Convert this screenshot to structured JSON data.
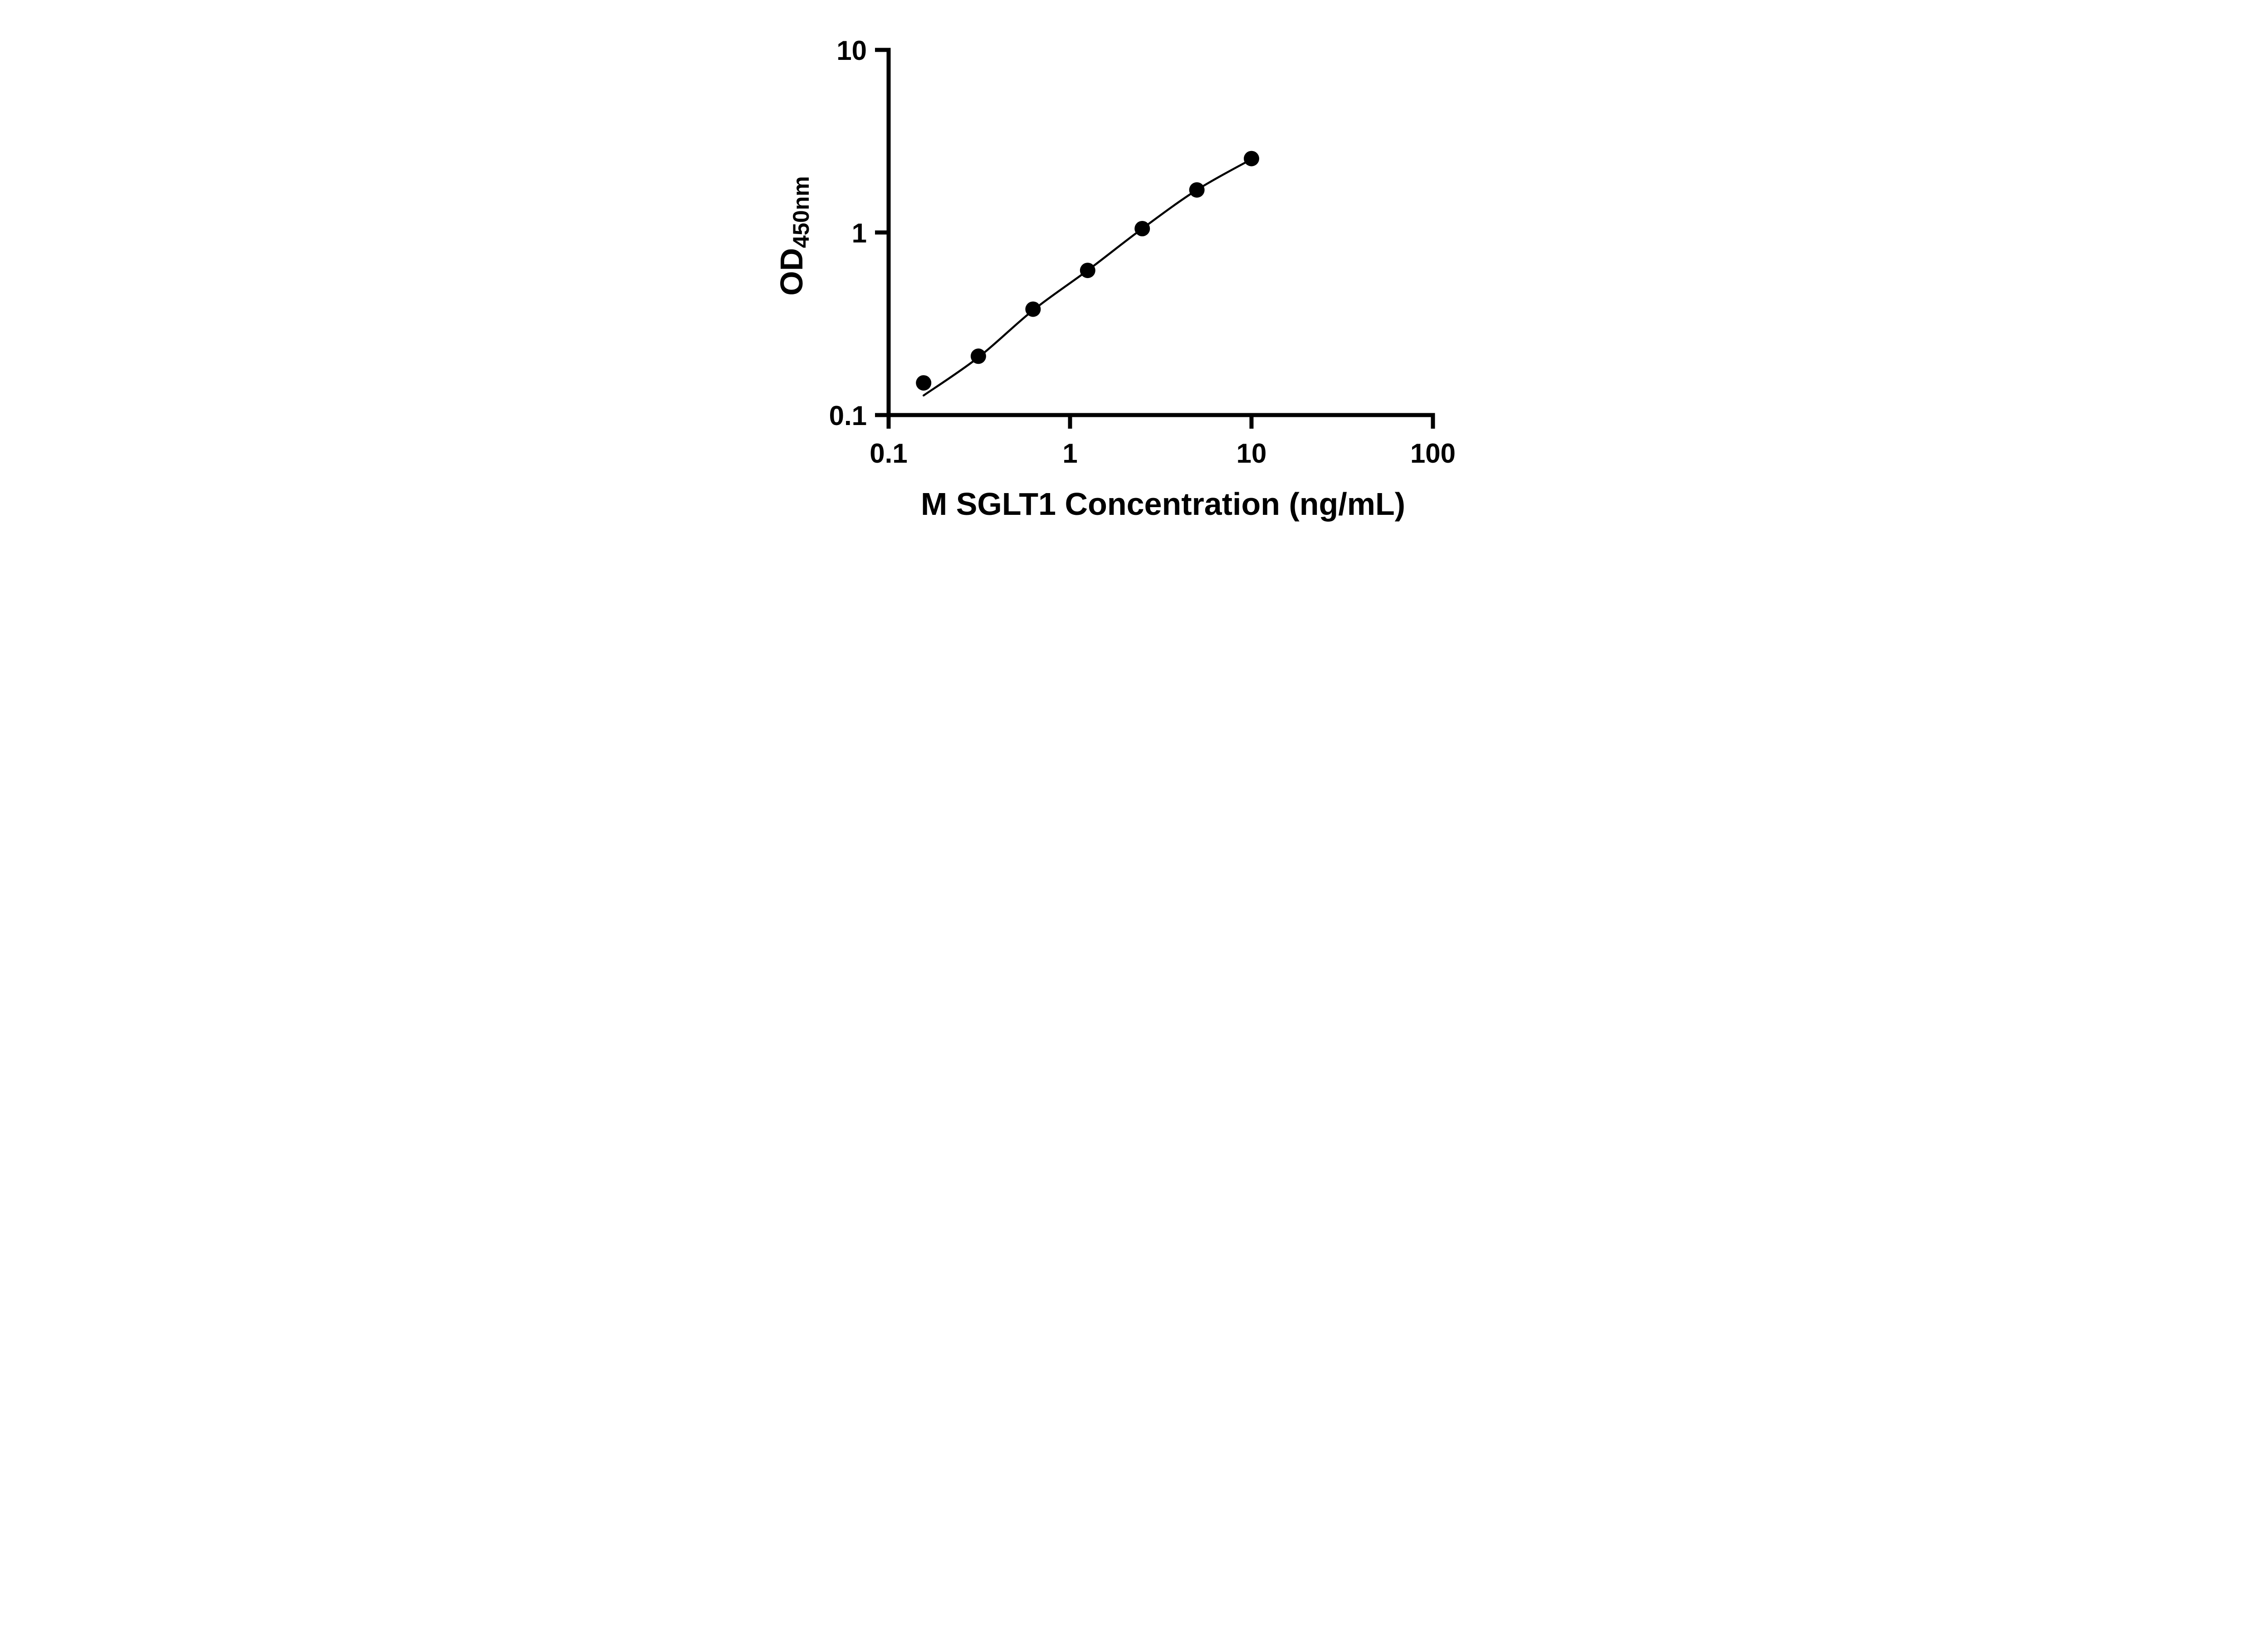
{
  "page": {
    "background": "#ffffff"
  },
  "chart_data": {
    "type": "scatter",
    "title": "",
    "xlabel": "M SGLT1 Concentration (ng/mL)",
    "ylabel": "OD450nm",
    "ylabel_main": "OD",
    "ylabel_subscript": "450nm",
    "x_scale": "log",
    "y_scale": "log",
    "xlim": [
      0.1,
      100
    ],
    "ylim": [
      0.1,
      10
    ],
    "x_ticks": [
      "0.1",
      "1",
      "10",
      "100"
    ],
    "x_tick_values": [
      0.1,
      1,
      10,
      100
    ],
    "y_ticks": [
      "0.1",
      "1",
      "10"
    ],
    "y_tick_values": [
      0.1,
      1,
      10
    ],
    "grid": false,
    "legend": false,
    "axis_color": "#000000",
    "line_color": "#000000",
    "marker_color": "#000000",
    "marker_shape": "circle",
    "series": [
      {
        "points": [
          {
            "x": 0.156,
            "y": 0.15
          },
          {
            "x": 0.3125,
            "y": 0.21
          },
          {
            "x": 0.625,
            "y": 0.38
          },
          {
            "x": 1.25,
            "y": 0.62
          },
          {
            "x": 2.5,
            "y": 1.05
          },
          {
            "x": 5,
            "y": 1.71
          },
          {
            "x": 10,
            "y": 2.54
          }
        ]
      }
    ],
    "fit_curve": [
      {
        "x": 0.156,
        "y": 0.128
      },
      {
        "x": 0.3125,
        "y": 0.207
      },
      {
        "x": 0.625,
        "y": 0.375
      },
      {
        "x": 1.25,
        "y": 0.62
      },
      {
        "x": 2.5,
        "y": 1.05
      },
      {
        "x": 5,
        "y": 1.71
      },
      {
        "x": 10,
        "y": 2.52
      }
    ]
  }
}
